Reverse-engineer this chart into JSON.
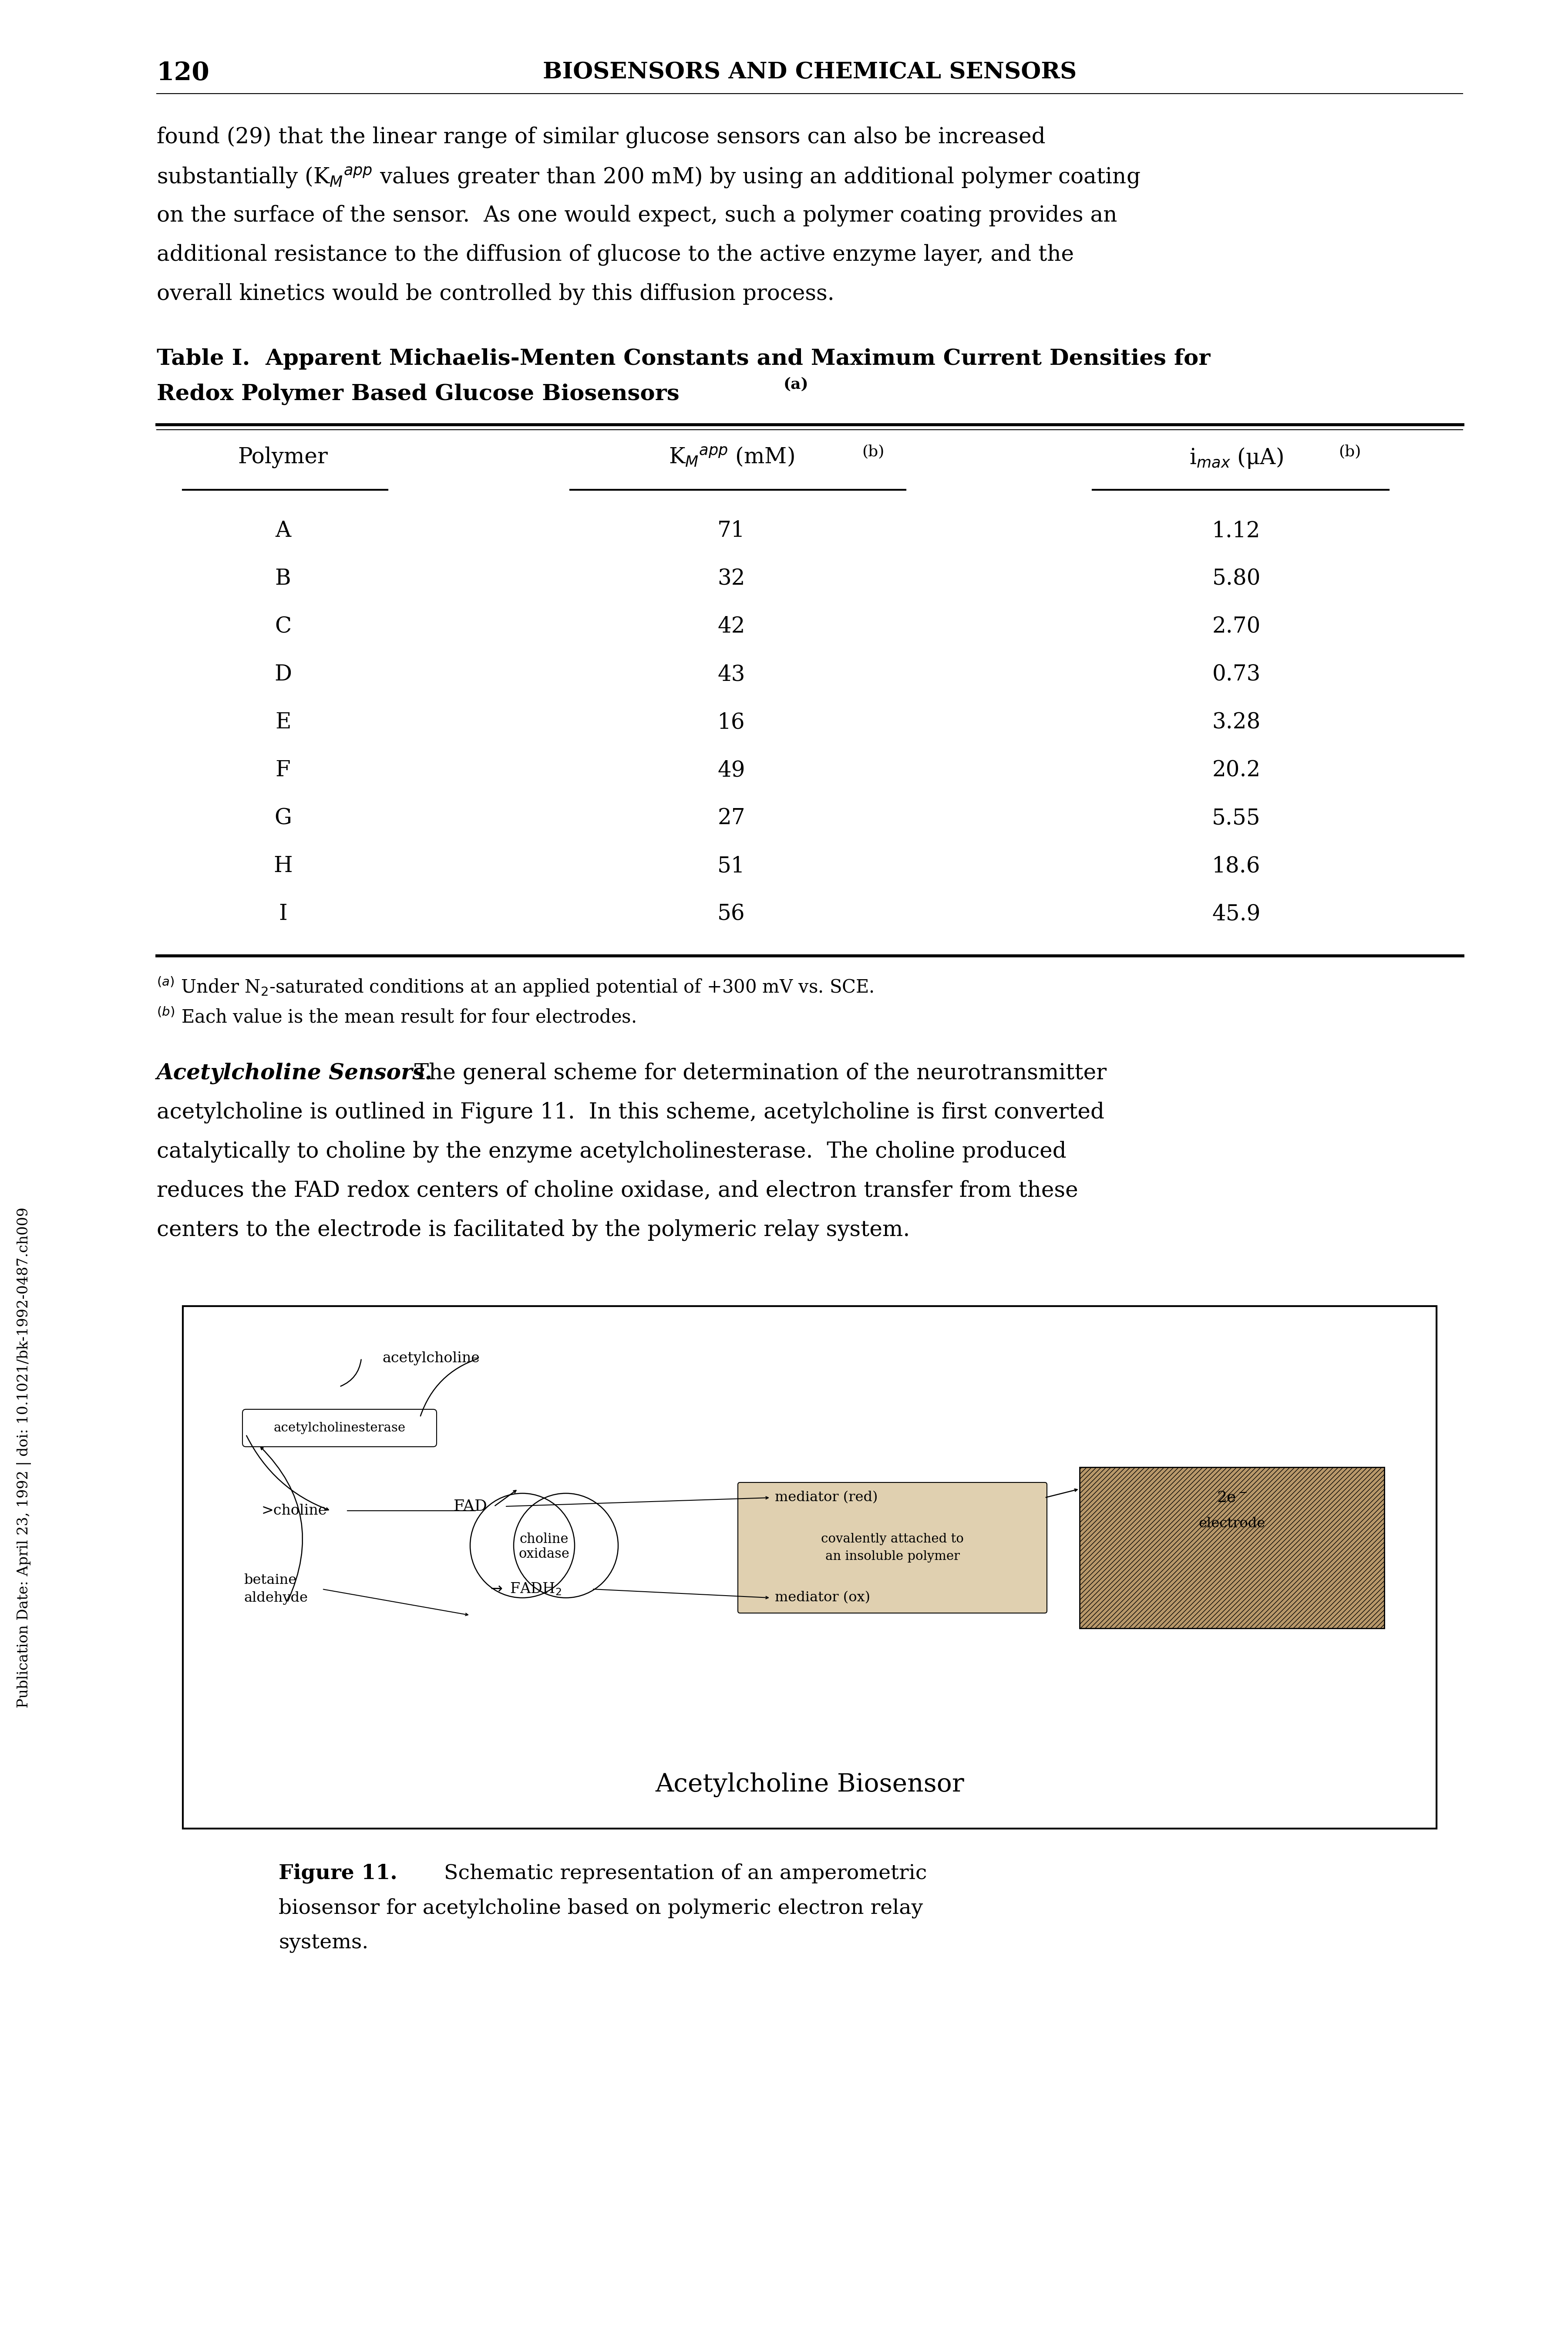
{
  "page_number": "120",
  "header_text": "BIOSENSORS AND CHEMICAL SENSORS",
  "body1_line1": "found (29) that the linear range of similar glucose sensors can also be increased",
  "body1_line2": "substantially (K$_M$$^{app}$ values greater than 200 mM) by using an additional polymer coating",
  "body1_line3": "on the surface of the sensor.  As one would expect, such a polymer coating provides an",
  "body1_line4": "additional resistance to the diffusion of glucose to the active enzyme layer, and the",
  "body1_line5": "overall kinetics would be controlled by this diffusion process.",
  "table_title_line1": "Table I.  Apparent Michaelis-Menten Constants and Maximum Current Densities for",
  "table_title_line2": "Redox Polymer Based Glucose Biosensors",
  "table_title_super": "(a)",
  "col1_header": "Polymer",
  "col2_header": "K$_M$$^{app}$ (mM)",
  "col2_super": "(b)",
  "col3_header": "i$_{max}$ (μA)",
  "col3_super": "(b)",
  "polymers": [
    "A",
    "B",
    "C",
    "D",
    "E",
    "F",
    "G",
    "H",
    "I"
  ],
  "km_values": [
    "71",
    "32",
    "42",
    "43",
    "16",
    "49",
    "27",
    "51",
    "56"
  ],
  "imax_values": [
    "1.12",
    "5.80",
    "2.70",
    "0.73",
    "3.28",
    "20.2",
    "5.55",
    "18.6",
    "45.9"
  ],
  "footnote_a": "$^{(a)}$ Under N$_2$-saturated conditions at an applied potential of +300 mV vs. SCE.",
  "footnote_b": "$^{(b)}$ Each value is the mean result for four electrodes.",
  "body2_bold": "Acetylcholine Sensors.",
  "body2_rest": "  The general scheme for determination of the neurotransmitter acetylcholine is outlined in Figure 11.  In this scheme, acetylcholine is first converted catalytically to choline by the enzyme acetylcholinesterase.  The choline produced reduces the FAD redox centers of choline oxidase, and electron transfer from these centers to the electrode is facilitated by the polymeric relay system.",
  "fig_title": "Acetylcholine Biosensor",
  "cap_bold": "Figure 11.",
  "cap_rest": "  Schematic representation of an amperometric biosensor for acetylcholine based on polymeric electron relay systems.",
  "sidebar": "Publication Date: April 23, 1992 | doi: 10.1021/bk-1992-0487.ch009",
  "enzyme_fill": "#d0e8c0",
  "mediator_fill": "#d8c8a0",
  "electrode_fill": "#c8a878",
  "electrode_hatch": "///",
  "bg": "#ffffff"
}
